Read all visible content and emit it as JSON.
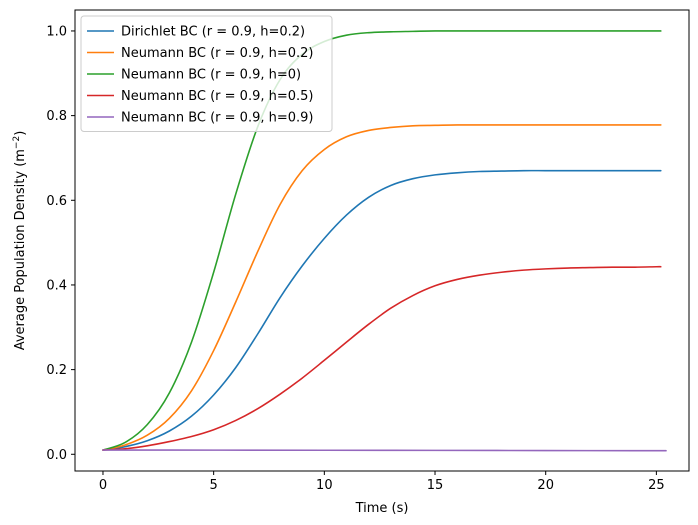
{
  "chart_data": {
    "type": "line",
    "title": "",
    "xlabel": "Time (s)",
    "ylabel_main": "Average Population Density (m",
    "ylabel_sup": "−2",
    "ylabel_close": ")",
    "xlim": [
      -1.2637,
      26.4737
    ],
    "ylim": [
      -0.0395,
      1.0495
    ],
    "xticks": [
      0,
      5,
      10,
      15,
      20,
      25
    ],
    "xtick_labels": [
      "0",
      "5",
      "10",
      "15",
      "20",
      "25"
    ],
    "yticks": [
      0.0,
      0.2,
      0.4,
      0.6,
      0.8,
      1.0
    ],
    "ytick_labels": [
      "0.0",
      "0.2",
      "0.4",
      "0.6",
      "0.8",
      "1.0"
    ],
    "grid": false,
    "legend_position": "top-left",
    "series": [
      {
        "name": "Dirichlet BC (r = 0.9, h=0.2)",
        "color": "#1f77b4",
        "x": [
          0,
          1,
          2,
          3,
          4,
          5,
          6,
          7,
          8,
          9,
          10,
          11,
          12,
          13,
          14,
          15,
          16,
          17,
          18,
          19,
          20,
          21,
          22,
          23,
          24,
          25,
          25.2
        ],
        "y": [
          0.01,
          0.018,
          0.032,
          0.055,
          0.09,
          0.14,
          0.205,
          0.285,
          0.37,
          0.445,
          0.51,
          0.565,
          0.607,
          0.635,
          0.651,
          0.66,
          0.665,
          0.668,
          0.669,
          0.67,
          0.67,
          0.67,
          0.67,
          0.67,
          0.67,
          0.67,
          0.67
        ]
      },
      {
        "name": "Neumann BC (r = 0.9, h=0.2)",
        "color": "#ff7f0e",
        "x": [
          0,
          1,
          2,
          3,
          4,
          5,
          6,
          7,
          8,
          9,
          10,
          11,
          12,
          13,
          14,
          15,
          16,
          17,
          18,
          19,
          20,
          21,
          22,
          23,
          24,
          25,
          25.2
        ],
        "y": [
          0.01,
          0.022,
          0.045,
          0.085,
          0.15,
          0.245,
          0.36,
          0.48,
          0.59,
          0.67,
          0.72,
          0.75,
          0.765,
          0.772,
          0.776,
          0.777,
          0.778,
          0.778,
          0.778,
          0.778,
          0.778,
          0.778,
          0.778,
          0.778,
          0.778,
          0.778,
          0.778
        ]
      },
      {
        "name": "Neumann BC (r = 0.9, h=0)",
        "color": "#2ca02c",
        "x": [
          0,
          1,
          2,
          3,
          4,
          5,
          6,
          7,
          8,
          9,
          10,
          11,
          12,
          13,
          14,
          15,
          16,
          17,
          18,
          19,
          20,
          21,
          22,
          23,
          24,
          25,
          25.2
        ],
        "y": [
          0.01,
          0.028,
          0.07,
          0.145,
          0.265,
          0.43,
          0.615,
          0.775,
          0.885,
          0.945,
          0.975,
          0.99,
          0.996,
          0.998,
          0.999,
          1.0,
          1.0,
          1.0,
          1.0,
          1.0,
          1.0,
          1.0,
          1.0,
          1.0,
          1.0,
          1.0,
          1.0
        ]
      },
      {
        "name": "Neumann BC (r = 0.9, h=0.5)",
        "color": "#d62728",
        "x": [
          0,
          1,
          2,
          3,
          4,
          5,
          6,
          7,
          8,
          9,
          10,
          11,
          12,
          13,
          14,
          15,
          16,
          17,
          18,
          19,
          20,
          21,
          22,
          23,
          24,
          25,
          25.2
        ],
        "y": [
          0.01,
          0.013,
          0.02,
          0.03,
          0.042,
          0.058,
          0.08,
          0.108,
          0.142,
          0.18,
          0.222,
          0.265,
          0.307,
          0.345,
          0.375,
          0.398,
          0.413,
          0.423,
          0.43,
          0.435,
          0.438,
          0.44,
          0.441,
          0.442,
          0.442,
          0.443,
          0.443
        ]
      },
      {
        "name": "Neumann BC (r = 0.9, h=0.9)",
        "color": "#9467bd",
        "x": [
          0,
          5,
          10,
          15,
          20,
          25,
          25.2
        ],
        "y": [
          0.01,
          0.0098,
          0.0095,
          0.0092,
          0.0088,
          0.0084,
          0.0084
        ]
      }
    ]
  }
}
